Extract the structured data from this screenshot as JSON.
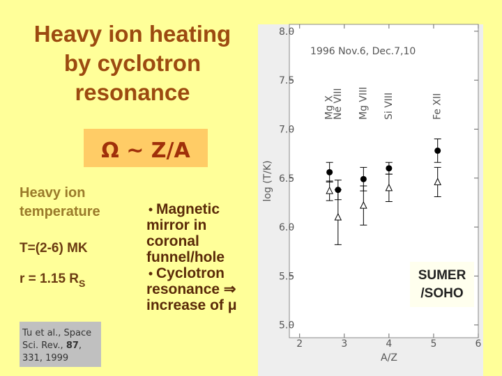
{
  "slide": {
    "title": [
      "Heavy ion heating",
      "by cyclotron",
      "resonance"
    ],
    "formula": "Ω ~ Z/A",
    "left_text": [
      "Heavy ion",
      "temperature"
    ],
    "temperature": "T=(2-6) MK",
    "radius": {
      "text": "r = 1.15 R",
      "subscript": "S"
    },
    "reference": [
      [
        "Tu et al., Space"
      ],
      [
        "Sci. Rev., ",
        "87",
        ","
      ],
      [
        "331, 1999"
      ]
    ],
    "bullets": [
      [
        "Magnetic",
        "mirror in",
        "coronal",
        "funnel/hole"
      ],
      [
        "Cyclotron",
        "resonance ⇒",
        "increase of μ"
      ]
    ],
    "source": [
      "SUMER",
      "/SOHO"
    ]
  },
  "chart_data": {
    "type": "scatter",
    "x_label": "A/Z",
    "y_label": "log (T/K)",
    "annotation": "1996 Nov.6, Dec.7,10",
    "labels": [
      "Mg X",
      "Ne VIII",
      "Mg VIII",
      "Si VIII",
      "Fe XII"
    ],
    "x": [
      2.67,
      2.86,
      3.43,
      4.0,
      5.09
    ],
    "series": [
      {
        "marker": "circle",
        "color": "#000000",
        "values": [
          6.56,
          6.38,
          6.49,
          6.6,
          6.78
        ],
        "errors": [
          0.1,
          0.1,
          0.12,
          0.06,
          0.12
        ]
      },
      {
        "marker": "triangle",
        "color": "#000000",
        "values": [
          6.37,
          6.1,
          6.22,
          6.4,
          6.46
        ],
        "errors": [
          0.1,
          0.28,
          0.2,
          0.14,
          0.15
        ]
      }
    ],
    "xlim": [
      1.77,
      6
    ],
    "ylim": [
      4.87,
      8.07
    ],
    "xticks": [
      2,
      3,
      4,
      5,
      6
    ],
    "yticks": [
      {
        "value": 5,
        "label": "5.0"
      },
      {
        "value": 5.5,
        "label": "5.5"
      },
      {
        "value": 6,
        "label": "6.0"
      },
      {
        "value": 6.5,
        "label": "6.5"
      },
      {
        "value": 7,
        "label": "7.0"
      },
      {
        "value": 7.5,
        "label": "7.5"
      },
      {
        "value": 8,
        "label": "8.0"
      }
    ]
  }
}
